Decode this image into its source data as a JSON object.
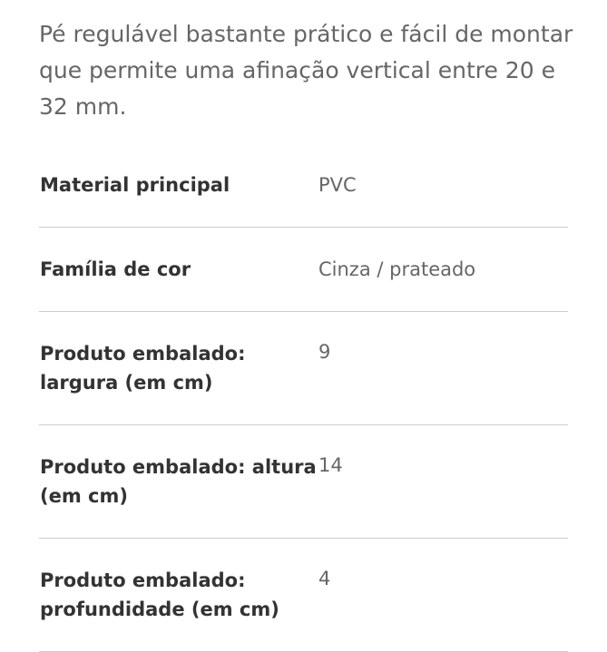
{
  "description": "Pé regulável bastante prático e fácil de montar que permite uma afinação vertical entre 20 e 32 mm.",
  "specs": [
    {
      "label": "Material principal",
      "value": "PVC"
    },
    {
      "label": "Família de cor",
      "value": "Cinza / prateado"
    },
    {
      "label": "Produto embalado: largura (em cm)",
      "value": "9"
    },
    {
      "label": "Produto embalado: altura (em cm)",
      "value": "14"
    },
    {
      "label": "Produto embalado: profundidade (em cm)",
      "value": "4"
    }
  ]
}
